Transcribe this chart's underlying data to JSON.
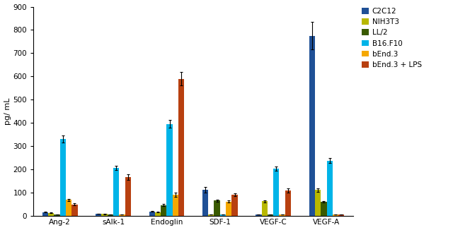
{
  "categories": [
    "Ang-2",
    "sAlk-1",
    "Endoglin",
    "SDF-1",
    "VEGF-C",
    "VEGF-A"
  ],
  "series": [
    {
      "name": "C2C12",
      "color": "#1f5096",
      "values": [
        15,
        8,
        18,
        110,
        5,
        775
      ],
      "errors": [
        1,
        1,
        2,
        12,
        1,
        60
      ]
    },
    {
      "name": "NIH3T3",
      "color": "#b8b800",
      "values": [
        12,
        7,
        15,
        5,
        62,
        110
      ],
      "errors": [
        1,
        1,
        1,
        1,
        4,
        7
      ]
    },
    {
      "name": "LL/2",
      "color": "#3a5a00",
      "values": [
        5,
        5,
        45,
        65,
        5,
        60
      ],
      "errors": [
        1,
        1,
        4,
        5,
        1,
        4
      ]
    },
    {
      "name": "B16.F10",
      "color": "#00b4e8",
      "values": [
        330,
        205,
        395,
        5,
        202,
        237
      ],
      "errors": [
        14,
        10,
        17,
        1,
        10,
        10
      ]
    },
    {
      "name": "bEnd.3",
      "color": "#f5a800",
      "values": [
        68,
        5,
        90,
        60,
        5,
        5
      ],
      "errors": [
        5,
        1,
        8,
        5,
        1,
        1
      ]
    },
    {
      "name": "bEnd.3 + LPS",
      "color": "#b84010",
      "values": [
        48,
        165,
        590,
        90,
        108,
        5
      ],
      "errors": [
        4,
        12,
        28,
        7,
        8,
        1
      ]
    }
  ],
  "ylabel": "pg/ mL",
  "ylim": [
    0,
    900
  ],
  "yticks": [
    0,
    100,
    200,
    300,
    400,
    500,
    600,
    700,
    800,
    900
  ],
  "background_color": "#ffffff",
  "bar_width": 0.11,
  "legend_fontsize": 7.5,
  "axis_fontsize": 7.5,
  "ylabel_fontsize": 8
}
